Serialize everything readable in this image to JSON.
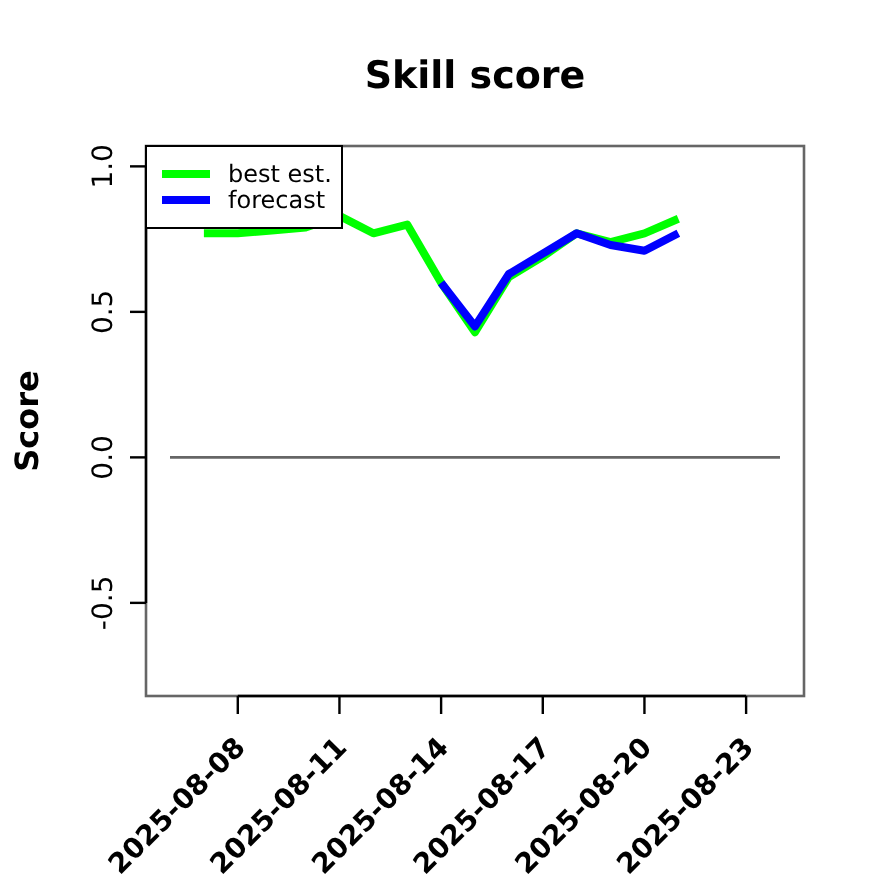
{
  "chart_data": {
    "type": "line",
    "title": "Skill score",
    "ylabel": "Score",
    "legend": "top left",
    "x": [
      "2025-08-07",
      "2025-08-08",
      "2025-08-09",
      "2025-08-10",
      "2025-08-11",
      "2025-08-12",
      "2025-08-13",
      "2025-08-14",
      "2025-08-15",
      "2025-08-16",
      "2025-08-17",
      "2025-08-18",
      "2025-08-19",
      "2025-08-20",
      "2025-08-21"
    ],
    "series": [
      {
        "name": "best est.",
        "color": "#00ff00",
        "values": [
          0.77,
          0.77,
          0.78,
          0.79,
          0.83,
          0.77,
          0.8,
          0.6,
          0.43,
          0.62,
          0.69,
          0.77,
          0.74,
          0.77,
          0.82
        ]
      },
      {
        "name": "forecast",
        "color": "#0000ff",
        "x": [
          "2025-08-14",
          "2025-08-15",
          "2025-08-16",
          "2025-08-17",
          "2025-08-18",
          "2025-08-19",
          "2025-08-20",
          "2025-08-21"
        ],
        "values": [
          0.6,
          0.45,
          0.63,
          0.7,
          0.77,
          0.73,
          0.71,
          0.77
        ]
      },
      {
        "type": "line",
        "color": "#666666",
        "x": [
          "2025-08-06",
          "2025-08-24"
        ],
        "values": [
          0,
          0
        ]
      }
    ],
    "xlim": [
      "2025-08-05T07:00",
      "2025-08-24T17:00"
    ],
    "xticks": [
      "2025-08-08",
      "2025-08-11",
      "2025-08-14",
      "2025-08-17",
      "2025-08-20",
      "2025-08-23"
    ],
    "ylim": [
      -0.82,
      1.07
    ],
    "yticks": [
      -0.5,
      {
        "value": 0,
        "label": "0.0"
      },
      0.5,
      {
        "value": 1,
        "label": "1.0"
      }
    ]
  }
}
